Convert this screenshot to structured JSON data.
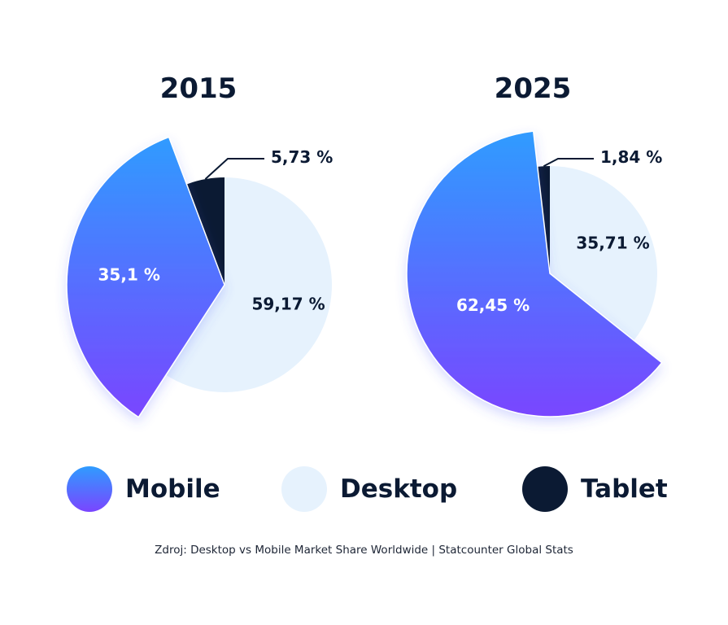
{
  "chart_data": [
    {
      "type": "pie",
      "title": "2015",
      "slices": [
        {
          "label": "Desktop",
          "value": 59.17,
          "display": "59,17 %"
        },
        {
          "label": "Mobile",
          "value": 35.1,
          "display": "35,1 %"
        },
        {
          "label": "Tablet",
          "value": 5.73,
          "display": "5,73 %"
        }
      ]
    },
    {
      "type": "pie",
      "title": "2025",
      "slices": [
        {
          "label": "Desktop",
          "value": 35.71,
          "display": "35,71 %"
        },
        {
          "label": "Mobile",
          "value": 62.45,
          "display": "62,45 %"
        },
        {
          "label": "Tablet",
          "value": 1.84,
          "display": "1,84 %"
        }
      ]
    }
  ],
  "legend": {
    "items": [
      {
        "label": "Mobile",
        "key": "mobile"
      },
      {
        "label": "Desktop",
        "key": "desktop"
      },
      {
        "label": "Tablet",
        "key": "tablet"
      }
    ],
    "placement": "bottom"
  },
  "colors": {
    "mobile_top": "#2f9cff",
    "mobile_bottom": "#7a45ff",
    "desktop": "#e6f2fd",
    "tablet": "#0b1a33",
    "text": "#0b1a33"
  },
  "source": "Zdroj: Desktop vs Mobile Market Share Worldwide | Statcounter Global Stats"
}
